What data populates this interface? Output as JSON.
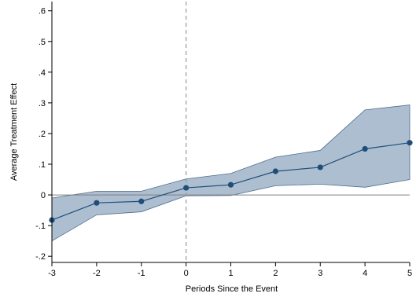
{
  "chart_data": {
    "type": "line",
    "xlabel": "Periods Since the Event",
    "ylabel": "Average Treatment Effect",
    "x": [
      -3,
      -2,
      -1,
      0,
      1,
      2,
      3,
      4,
      5
    ],
    "x_tick_labels": [
      "-3",
      "-2",
      "-1",
      "0",
      "1",
      "2",
      "3",
      "4",
      "5"
    ],
    "y_ticks": [
      -0.2,
      -0.1,
      0,
      0.1,
      0.2,
      0.3,
      0.4,
      0.5,
      0.6
    ],
    "y_tick_labels": [
      "-.2",
      "-.1",
      "0",
      ".1",
      ".2",
      ".3",
      ".4",
      ".5",
      ".6"
    ],
    "xlim": [
      -3,
      5
    ],
    "ylim": [
      -0.22,
      0.63
    ],
    "grid": false,
    "series": [
      {
        "values": [
          -0.082,
          -0.026,
          -0.021,
          0.023,
          0.033,
          0.077,
          0.09,
          0.15,
          0.17
        ],
        "ci_lower": [
          -0.15,
          -0.065,
          -0.055,
          -0.003,
          -0.002,
          0.03,
          0.035,
          0.025,
          0.05
        ],
        "ci_upper": [
          -0.01,
          0.012,
          0.012,
          0.052,
          0.07,
          0.123,
          0.145,
          0.277,
          0.293
        ]
      }
    ],
    "reference_lines": {
      "y": 0,
      "x": 0
    },
    "colors": {
      "line": "#1f4e79",
      "marker": "#1f4e79",
      "band_fill": "#9fb3c8",
      "band_edge": "#4f6f8f",
      "zero_line": "#7f7f7f",
      "event_line": "#9a9a9a"
    }
  }
}
